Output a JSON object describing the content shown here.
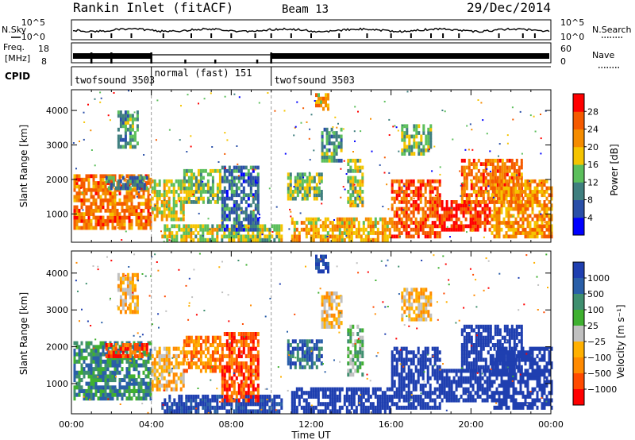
{
  "header": {
    "station": "Rankin Inlet (fitACF)",
    "beam": "Beam 13",
    "date": "29/Dec/2014"
  },
  "status_panels": {
    "nsky_label": "N.Sky",
    "nsearch_label": "N.Search",
    "freq_label_1": "Freq.",
    "freq_label_2": "[MHz]",
    "nave_label": "Nave",
    "cpid_label": "CPID",
    "noise_ticks_left": [
      "10^5",
      "10^0"
    ],
    "noise_ticks_right": [
      "10^5",
      "10^0"
    ],
    "freq_ticks_left": [
      "18",
      "8"
    ],
    "nave_ticks_right": [
      "60",
      "0"
    ]
  },
  "cpid_segments": [
    {
      "label": "twofsound 3503",
      "start_hour": 0.0,
      "end_hour": 4.0
    },
    {
      "label": "normal (fast) 151",
      "start_hour": 4.0,
      "end_hour": 10.0
    },
    {
      "label": "twofsound 3503",
      "start_hour": 10.0,
      "end_hour": 24.0
    }
  ],
  "colors": {
    "power_scale": [
      "#0000ff",
      "#2a4fa8",
      "#3f7f7f",
      "#5cbf5c",
      "#f5c400",
      "#f58c00",
      "#f55a00",
      "#ff0000"
    ],
    "velocity_scale": [
      "#ff0000",
      "#ff4a00",
      "#ff8a00",
      "#ffb000",
      "#c0c0c0",
      "#3fb030",
      "#3f8f6f",
      "#2a5fa8",
      "#1f3fb0"
    ]
  },
  "chart_data": [
    {
      "type": "heatmap",
      "name": "power",
      "ylabel": "Slant Range [km]",
      "xlabel": "Time UT",
      "x_ticks": [
        "00:00",
        "04:00",
        "08:00",
        "12:00",
        "16:00",
        "20:00",
        "00:00"
      ],
      "x_range_hours": [
        0,
        24
      ],
      "y_ticks": [
        1000,
        2000,
        3000,
        4000
      ],
      "y_range": [
        180,
        4600
      ],
      "colorbar": {
        "label": "Power [dB]",
        "ticks": [
          4,
          8,
          12,
          16,
          20,
          24,
          28
        ],
        "range": [
          0,
          32
        ]
      }
    },
    {
      "type": "heatmap",
      "name": "velocity",
      "ylabel": "Slant Range [km]",
      "xlabel": "Time UT",
      "x_ticks": [
        "00:00",
        "04:00",
        "08:00",
        "12:00",
        "16:00",
        "20:00",
        "00:00"
      ],
      "x_range_hours": [
        0,
        24
      ],
      "y_ticks": [
        1000,
        2000,
        3000,
        4000
      ],
      "y_range": [
        180,
        4600
      ],
      "colorbar": {
        "label": "Velocity [m s⁻¹]",
        "ticks": [
          "1000",
          "500",
          "100",
          "25",
          "−25",
          "−100",
          "−500",
          "−1000"
        ]
      }
    }
  ]
}
